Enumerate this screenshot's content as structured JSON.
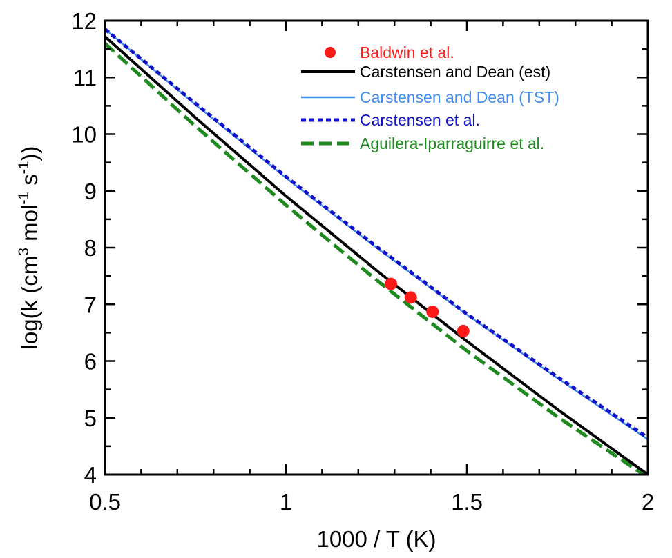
{
  "chart_data": {
    "type": "line",
    "xlabel": "1000 / T (K)",
    "ylabel_parts": {
      "prefix": "log(k (cm",
      "sup1": "3",
      "mid1": " mol",
      "sup2": "-1",
      "mid2": " s",
      "sup3": "-1",
      "suffix": "))"
    },
    "xlim": [
      0.5,
      2
    ],
    "ylim": [
      4,
      12
    ],
    "x_ticks": [
      0.5,
      1,
      1.5,
      2
    ],
    "x_tick_labels": [
      "0.5",
      "1",
      "1.5",
      "2"
    ],
    "y_ticks": [
      4,
      5,
      6,
      7,
      8,
      9,
      10,
      11,
      12
    ],
    "y_tick_labels": [
      "4",
      "5",
      "6",
      "7",
      "8",
      "9",
      "10",
      "11",
      "12"
    ],
    "grid": false,
    "legend_position": "top-right",
    "series": [
      {
        "name": "Baldwin et al.",
        "type": "scatter",
        "color": "#ff1a1a",
        "x": [
          1.29,
          1.345,
          1.405,
          1.49
        ],
        "y": [
          7.36,
          7.12,
          6.87,
          6.53
        ]
      },
      {
        "name": "Carstensen and Dean (est)",
        "type": "line",
        "style": "solid",
        "color": "#000000",
        "x": [
          0.5,
          0.75,
          1.0,
          1.25,
          1.5,
          1.75,
          2.0
        ],
        "y": [
          11.72,
          10.29,
          8.91,
          7.6,
          6.35,
          5.15,
          4.0
        ]
      },
      {
        "name": "Carstensen and Dean (TST)",
        "type": "line",
        "style": "solid-thin",
        "color": "#3f8ef0",
        "x": [
          0.5,
          0.75,
          1.0,
          1.25,
          1.5,
          1.75,
          2.0
        ],
        "y": [
          11.85,
          10.52,
          9.23,
          8.0,
          6.82,
          5.7,
          4.62
        ]
      },
      {
        "name": "Carstensen et al.",
        "type": "line",
        "style": "dotted",
        "color": "#1010c8",
        "x": [
          0.5,
          0.75,
          1.0,
          1.25,
          1.5,
          1.75,
          2.0
        ],
        "y": [
          11.85,
          10.54,
          9.25,
          8.02,
          6.83,
          5.72,
          4.65
        ]
      },
      {
        "name": "Aguilera-Iparraguirre et al.",
        "type": "line",
        "style": "dashed",
        "color": "#1f8a1f",
        "x": [
          0.5,
          0.75,
          1.0,
          1.25,
          1.5,
          1.75,
          2.0
        ],
        "y": [
          11.6,
          10.14,
          8.75,
          7.43,
          6.18,
          5.02,
          3.95
        ]
      }
    ]
  }
}
